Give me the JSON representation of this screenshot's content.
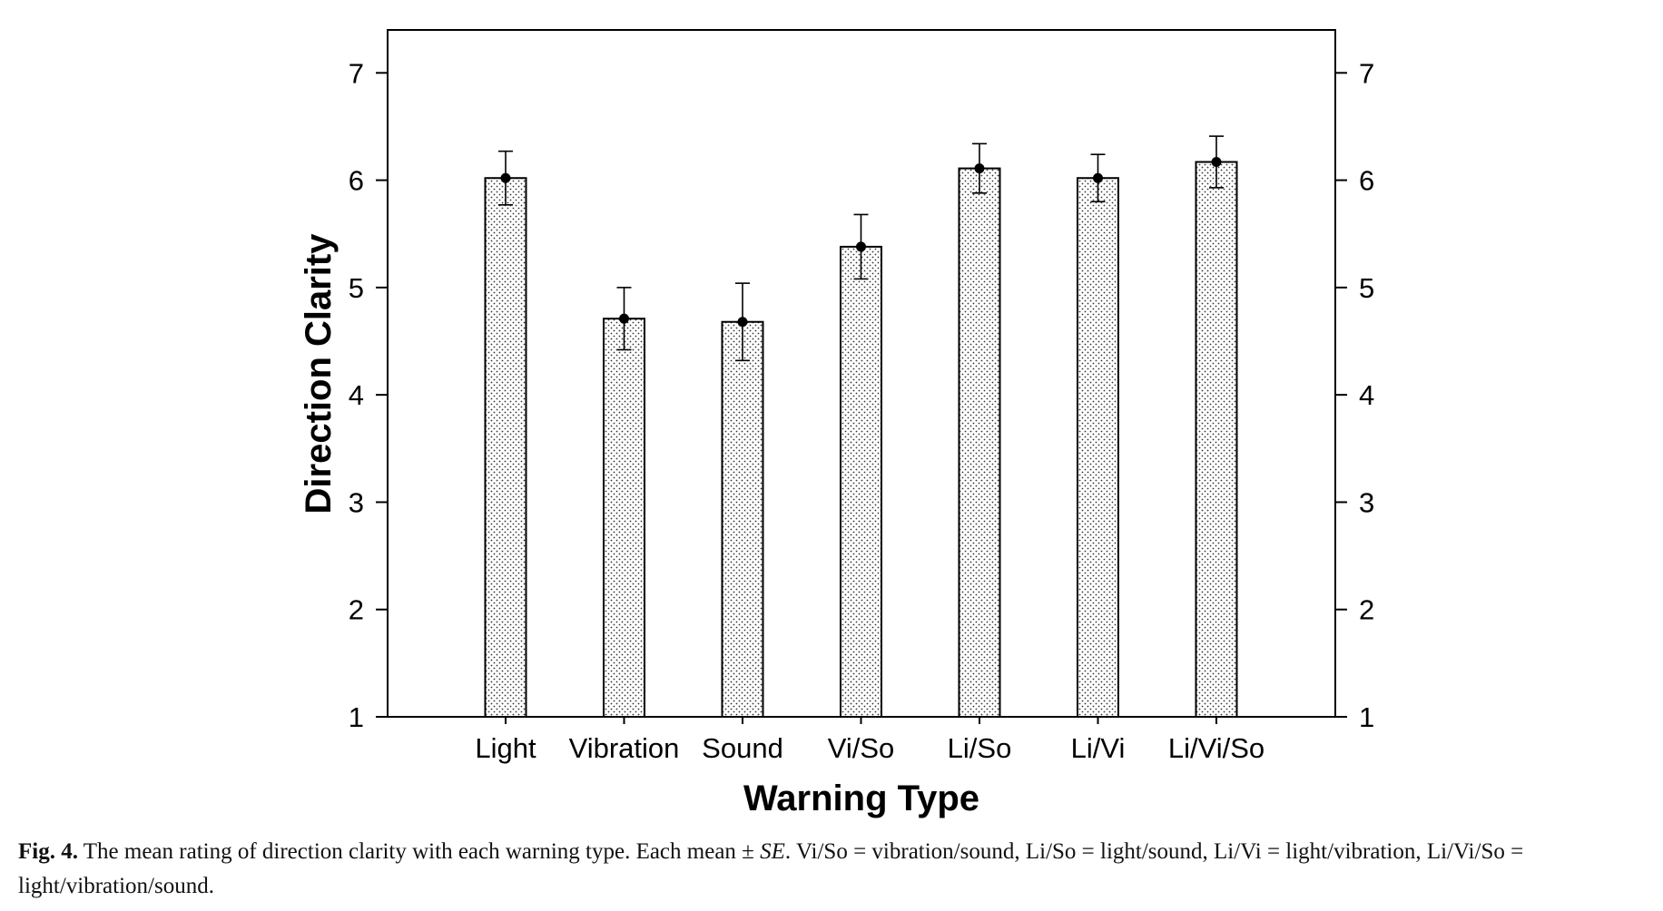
{
  "chart_data": {
    "type": "bar",
    "xlabel": "Warning Type",
    "ylabel": "Direction Clarity",
    "ylim": [
      1,
      7.4
    ],
    "yticks": [
      1,
      2,
      3,
      4,
      5,
      6,
      7
    ],
    "mirror_right_axis": true,
    "grid": false,
    "bar_style": "dotted fill, black outline",
    "error_bars": "mean ± SE",
    "categories": [
      "Light",
      "Vibration",
      "Sound",
      "Vi/So",
      "Li/So",
      "Li/Vi",
      "Li/Vi/So"
    ],
    "values": [
      6.02,
      4.71,
      4.68,
      5.38,
      6.11,
      6.02,
      6.17
    ],
    "errors": [
      0.25,
      0.29,
      0.36,
      0.3,
      0.23,
      0.22,
      0.24
    ]
  },
  "caption": {
    "label": "Fig. 4.",
    "text_before_se": " The mean rating of direction clarity with each warning type. Each mean ± ",
    "se": "SE",
    "text_after_se": ". Vi/So = vibration/sound, Li/So = light/sound, Li/Vi = light/vibration, Li/Vi/So = light/vibration/sound."
  }
}
